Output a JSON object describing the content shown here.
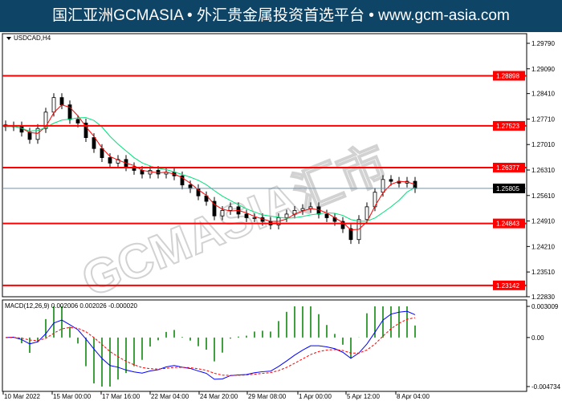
{
  "header": {
    "title": "国汇亚洲GCMASIA • 外汇贵金属投资首选平台 • www.gcm-asia.com"
  },
  "chart_data": {
    "type": "candlestick",
    "symbol_label": "USDCAD,H4",
    "price_ticks": [
      "1.29790",
      "1.29090",
      "1.28410",
      "1.27710",
      "1.27010",
      "1.26310",
      "1.25610",
      "1.24910",
      "1.24210",
      "1.23510",
      "1.22830"
    ],
    "price_range": [
      1.2283,
      1.2979
    ],
    "horizontal_levels": [
      "1.28898",
      "1.27523",
      "1.26377",
      "1.24843",
      "1.23142"
    ],
    "level_color": "#ff0000",
    "current_price": "1.25805",
    "closes": [
      1.275,
      1.2752,
      1.2735,
      1.2715,
      1.2745,
      1.279,
      1.283,
      1.281,
      1.277,
      1.276,
      1.272,
      1.269,
      1.2665,
      1.265,
      1.266,
      1.264,
      1.263,
      1.262,
      1.263,
      1.262,
      1.2625,
      1.2615,
      1.259,
      1.258,
      1.256,
      1.2545,
      1.2505,
      1.252,
      1.253,
      1.251,
      1.25,
      1.25,
      1.249,
      1.248,
      1.25,
      1.251,
      1.252,
      1.2525,
      1.253,
      1.251,
      1.25,
      1.249,
      1.247,
      1.244,
      1.2495,
      1.253,
      1.257,
      1.2605,
      1.26,
      1.2595,
      1.26,
      1.258
    ],
    "ma_colors": {
      "fast": "#ff0000",
      "slow": "#00e07a"
    },
    "macd": {
      "label": "MACD(12,26,9) 0.002006 0.002026 -0.000020",
      "ticks": [
        "0.003009",
        "0.00",
        "-0.004734"
      ],
      "range": [
        -0.004734,
        0.003009
      ],
      "line_color": "#0000ff",
      "signal_color": "#ff0000",
      "hist_color": "#008000"
    },
    "x_labels": [
      "10 Mar 2022",
      "15 Mar 00:00",
      "17 Mar 16:00",
      "22 Mar 04:00",
      "24 Mar 20:00",
      "29 Mar 08:00",
      "1 Apr 00:00",
      "5 Apr 12:00",
      "8 Apr 04:00"
    ]
  },
  "watermark": "GCMASIA汇市"
}
